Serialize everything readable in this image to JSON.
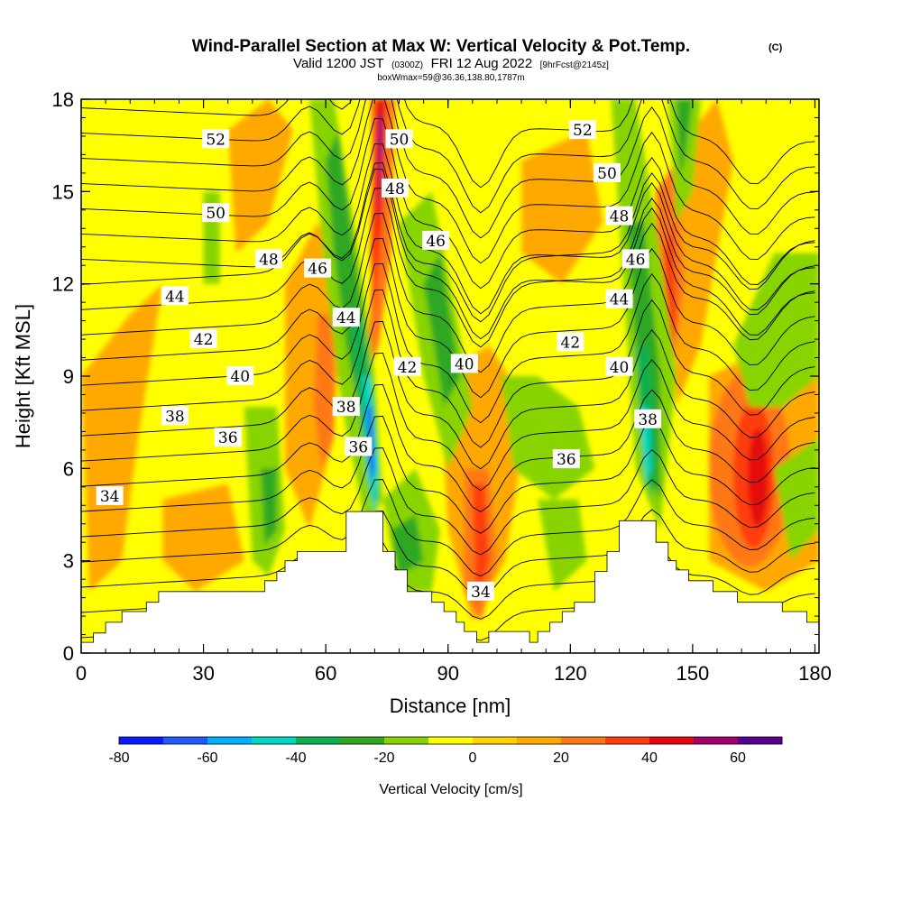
{
  "title": {
    "main": "Wind-Parallel Section at Max W: Vertical Velocity & Pot.Temp.",
    "copyright": "(C)",
    "valid_prefix": "Valid 1200 JST",
    "valid_utc": "(0300Z)",
    "valid_date": "FRI 12 Aug 2022",
    "forecast": "[9hrFcst@2145z]",
    "box_info": "boxWmax=59@36.36,138.80,1787m"
  },
  "chart_data": {
    "type": "heatmap",
    "xlabel": "Distance [nm]",
    "ylabel": "Height [Kft MSL]",
    "xlim": [
      0,
      181
    ],
    "ylim": [
      0,
      18
    ],
    "xticks": [
      0,
      30,
      60,
      90,
      120,
      150,
      180
    ],
    "yticks": [
      0,
      3,
      6,
      9,
      12,
      15,
      18
    ],
    "colorbar": {
      "label": "Vertical Velocity [cm/s]",
      "bounds": [
        -80,
        -70,
        -60,
        -50,
        -40,
        -30,
        -20,
        -10,
        0,
        10,
        20,
        30,
        40,
        50,
        60,
        70
      ],
      "tick_values": [
        -80,
        -60,
        -40,
        -20,
        0,
        20,
        40,
        60
      ],
      "tick_labels": [
        "-80",
        "-60",
        "-40",
        "-20",
        "0",
        "20",
        "40",
        "60"
      ],
      "colors": [
        "#0a1aff",
        "#1e5aff",
        "#00b0ff",
        "#00d8c0",
        "#10b050",
        "#2ea821",
        "#88d400",
        "#ffff00",
        "#ffd200",
        "#ffa800",
        "#ff7818",
        "#ff3c10",
        "#e60a10",
        "#a4006a",
        "#5a0090"
      ]
    },
    "terrain_profile": [
      [
        0,
        0.35
      ],
      [
        3,
        0.35
      ],
      [
        3,
        0.65
      ],
      [
        6,
        0.65
      ],
      [
        6,
        1.0
      ],
      [
        10,
        1.0
      ],
      [
        10,
        1.35
      ],
      [
        16,
        1.35
      ],
      [
        16,
        1.65
      ],
      [
        19,
        1.65
      ],
      [
        19,
        2.0
      ],
      [
        45,
        2.0
      ],
      [
        45,
        2.35
      ],
      [
        48,
        2.35
      ],
      [
        48,
        2.65
      ],
      [
        50,
        2.65
      ],
      [
        50,
        3.0
      ],
      [
        53,
        3.0
      ],
      [
        53,
        3.3
      ],
      [
        65,
        3.3
      ],
      [
        65,
        4.6
      ],
      [
        74,
        4.6
      ],
      [
        74,
        3.3
      ],
      [
        77,
        3.3
      ],
      [
        77,
        2.7
      ],
      [
        80,
        2.7
      ],
      [
        80,
        2.0
      ],
      [
        86,
        2.0
      ],
      [
        86,
        1.65
      ],
      [
        89,
        1.65
      ],
      [
        89,
        1.35
      ],
      [
        92,
        1.35
      ],
      [
        92,
        1.0
      ],
      [
        94,
        1.0
      ],
      [
        94,
        0.7
      ],
      [
        97,
        0.7
      ],
      [
        97,
        0.35
      ],
      [
        100,
        0.35
      ],
      [
        100,
        0.7
      ],
      [
        110,
        0.7
      ],
      [
        110,
        0.35
      ],
      [
        112,
        0.35
      ],
      [
        112,
        0.7
      ],
      [
        115,
        0.7
      ],
      [
        115,
        1.0
      ],
      [
        118,
        1.0
      ],
      [
        118,
        1.35
      ],
      [
        121,
        1.35
      ],
      [
        121,
        1.65
      ],
      [
        126,
        1.65
      ],
      [
        126,
        2.65
      ],
      [
        129,
        2.65
      ],
      [
        129,
        3.3
      ],
      [
        132,
        3.3
      ],
      [
        132,
        4.3
      ],
      [
        141,
        4.3
      ],
      [
        141,
        3.6
      ],
      [
        144,
        3.6
      ],
      [
        144,
        3.0
      ],
      [
        146,
        3.0
      ],
      [
        146,
        2.7
      ],
      [
        149,
        2.7
      ],
      [
        149,
        2.35
      ],
      [
        155,
        2.35
      ],
      [
        155,
        2.0
      ],
      [
        161,
        2.0
      ],
      [
        161,
        1.65
      ],
      [
        172,
        1.65
      ],
      [
        172,
        1.35
      ],
      [
        178,
        1.35
      ],
      [
        178,
        1.0
      ],
      [
        181,
        1.0
      ]
    ],
    "contour_labels": [
      {
        "text": "52",
        "x": 33,
        "y": 16.7
      },
      {
        "text": "52",
        "x": 123,
        "y": 17.0
      },
      {
        "text": "50",
        "x": 78,
        "y": 16.7
      },
      {
        "text": "50",
        "x": 129,
        "y": 15.6
      },
      {
        "text": "50",
        "x": 33,
        "y": 14.3
      },
      {
        "text": "48",
        "x": 77,
        "y": 15.1
      },
      {
        "text": "48",
        "x": 132,
        "y": 14.2
      },
      {
        "text": "48",
        "x": 46,
        "y": 12.8
      },
      {
        "text": "46",
        "x": 87,
        "y": 13.4
      },
      {
        "text": "46",
        "x": 136,
        "y": 12.8
      },
      {
        "text": "46",
        "x": 58,
        "y": 12.5
      },
      {
        "text": "44",
        "x": 23,
        "y": 11.6
      },
      {
        "text": "44",
        "x": 132,
        "y": 11.5
      },
      {
        "text": "44",
        "x": 65,
        "y": 10.9
      },
      {
        "text": "42",
        "x": 30,
        "y": 10.2
      },
      {
        "text": "42",
        "x": 120,
        "y": 10.1
      },
      {
        "text": "42",
        "x": 80,
        "y": 9.3
      },
      {
        "text": "40",
        "x": 94,
        "y": 9.4
      },
      {
        "text": "40",
        "x": 132,
        "y": 9.3
      },
      {
        "text": "40",
        "x": 39,
        "y": 9.0
      },
      {
        "text": "38",
        "x": 65,
        "y": 8.0
      },
      {
        "text": "38",
        "x": 23,
        "y": 7.7
      },
      {
        "text": "38",
        "x": 139,
        "y": 7.6
      },
      {
        "text": "36",
        "x": 36,
        "y": 7.0
      },
      {
        "text": "36",
        "x": 68,
        "y": 6.7
      },
      {
        "text": "36",
        "x": 119,
        "y": 6.3
      },
      {
        "text": "34",
        "x": 7,
        "y": 5.1
      },
      {
        "text": "34",
        "x": 98,
        "y": 2.0
      }
    ]
  }
}
